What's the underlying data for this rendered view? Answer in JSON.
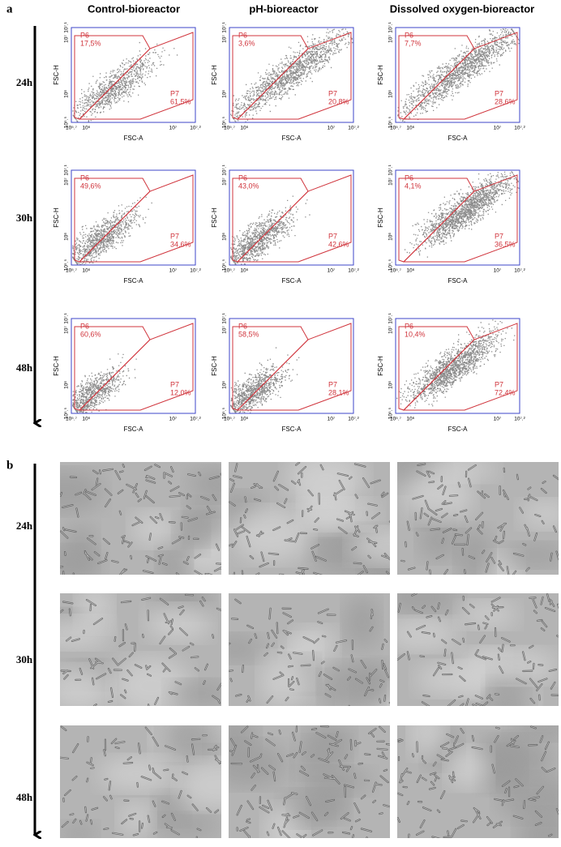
{
  "panel_a": {
    "label": "a",
    "columns": [
      "Control-bioreactor",
      "pH-bioreactor",
      "Dissolved oxygen-bioreactor"
    ],
    "rows": [
      "24h",
      "30h",
      "48h"
    ],
    "x_axis_label": "FSC-A",
    "y_axis_label": "FSC-H",
    "x_ticks": [
      "10⁵.⁷",
      "10⁶",
      "10⁷",
      "10⁷.²"
    ],
    "y_ticks": [
      "10⁵.⁵",
      "10⁶",
      "10⁷",
      "10⁷.¹"
    ],
    "gate_names": [
      "P6",
      "P7"
    ],
    "plots": [
      [
        {
          "p6": "17,5%",
          "p7": "61,5%"
        },
        {
          "p6": "3,6%",
          "p7": "20,8%"
        },
        {
          "p6": "7,7%",
          "p7": "28,6%"
        }
      ],
      [
        {
          "p6": "49,6%",
          "p7": "34,6%"
        },
        {
          "p6": "43,0%",
          "p7": "42,6%"
        },
        {
          "p6": "4,1%",
          "p7": "36,5%"
        }
      ],
      [
        {
          "p6": "60,6%",
          "p7": "12,0%"
        },
        {
          "p6": "58,5%",
          "p7": "28,1%"
        },
        {
          "p6": "10,4%",
          "p7": "72,4%"
        }
      ]
    ]
  },
  "panel_b": {
    "label": "b",
    "rows": [
      "24h",
      "30h",
      "48h"
    ]
  }
}
